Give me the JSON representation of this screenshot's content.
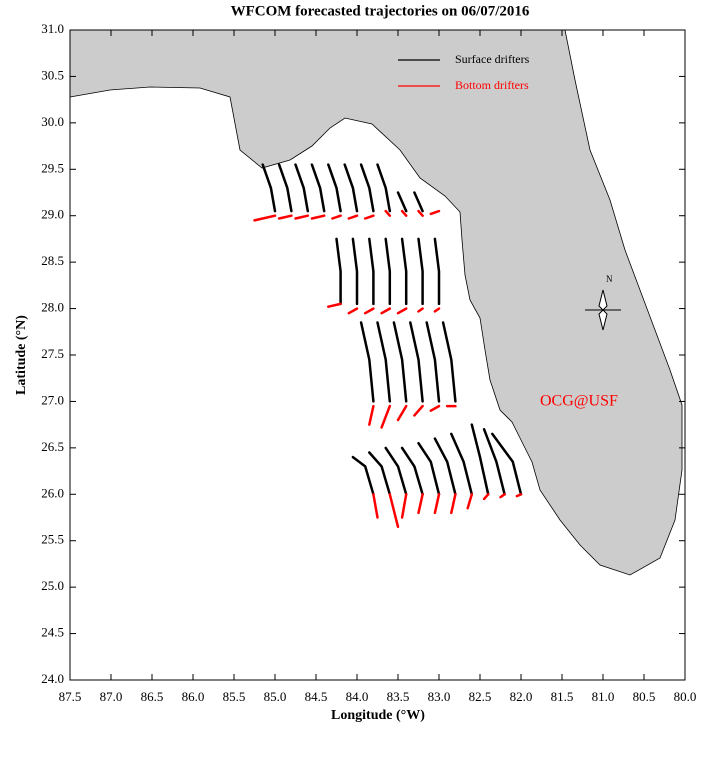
{
  "chart_data": {
    "type": "line",
    "title": "WFCOM forecasted trajectories on 06/07/2016",
    "x_label": "Longitude (°W)",
    "y_label": "Latitude (°N)",
    "annotation": "OCG@USF",
    "xlim": [
      87.5,
      80.0
    ],
    "ylim": [
      24.0,
      31.0
    ],
    "xticks": [
      87.5,
      {
        "value": 87,
        "label": "87.0"
      },
      86.5,
      {
        "value": 86,
        "label": "86.0"
      },
      85.5,
      {
        "value": 85,
        "label": "85.0"
      },
      84.5,
      {
        "value": 84,
        "label": "84.0"
      },
      83.5,
      {
        "value": 83,
        "label": "83.0"
      },
      82.5,
      {
        "value": 82,
        "label": "82.0"
      },
      81.5,
      {
        "value": 81,
        "label": "81.0"
      },
      80.5,
      {
        "value": 80,
        "label": "80.0"
      }
    ],
    "yticks": [
      {
        "value": 24,
        "label": "24.0"
      },
      24.5,
      {
        "value": 25,
        "label": "25.0"
      },
      25.5,
      {
        "value": 26,
        "label": "26.0"
      },
      26.5,
      {
        "value": 27,
        "label": "27.0"
      },
      27.5,
      {
        "value": 28,
        "label": "28.0"
      },
      28.5,
      {
        "value": 29,
        "label": "29.0"
      },
      29.5,
      {
        "value": 30,
        "label": "30.0"
      },
      30.5,
      {
        "value": 31,
        "label": "31.0"
      }
    ],
    "series": [
      {
        "name": "Surface drifters",
        "color": "#000000",
        "x": [
          85.0,
          85.05,
          85.15,
          null,
          84.8,
          84.85,
          84.95,
          null,
          84.6,
          84.65,
          84.75,
          null,
          84.4,
          84.45,
          84.55,
          null,
          84.2,
          84.25,
          84.35,
          null,
          84.0,
          84.05,
          84.15,
          null,
          83.8,
          83.85,
          83.95,
          null,
          83.6,
          83.65,
          83.75,
          null,
          83.4,
          83.45,
          83.5,
          null,
          83.2,
          83.25,
          83.3,
          null,
          84.2,
          84.2,
          84.25,
          null,
          84.0,
          84.0,
          84.05,
          null,
          83.8,
          83.8,
          83.85,
          null,
          83.6,
          83.6,
          83.65,
          null,
          83.4,
          83.4,
          83.45,
          null,
          83.2,
          83.2,
          83.25,
          null,
          83.0,
          83.0,
          83.05,
          null,
          83.8,
          83.85,
          83.95,
          null,
          83.6,
          83.65,
          83.75,
          null,
          83.4,
          83.45,
          83.55,
          null,
          83.2,
          83.25,
          83.35,
          null,
          83.0,
          83.05,
          83.15,
          null,
          82.8,
          82.85,
          82.95,
          null,
          83.8,
          83.9,
          84.05,
          null,
          83.6,
          83.7,
          83.85,
          null,
          83.4,
          83.5,
          83.65,
          null,
          83.2,
          83.3,
          83.45,
          null,
          83.0,
          83.1,
          83.25,
          null,
          82.8,
          82.9,
          83.05,
          null,
          82.6,
          82.7,
          82.85,
          null,
          82.4,
          82.5,
          82.6,
          null,
          82.2,
          82.3,
          82.45,
          null,
          82.0,
          82.1,
          82.35
        ],
        "values": [
          29.05,
          29.3,
          29.55,
          null,
          29.05,
          29.3,
          29.55,
          null,
          29.05,
          29.3,
          29.55,
          null,
          29.05,
          29.3,
          29.55,
          null,
          29.05,
          29.3,
          29.55,
          null,
          29.05,
          29.3,
          29.55,
          null,
          29.05,
          29.3,
          29.55,
          null,
          29.05,
          29.3,
          29.55,
          null,
          29.05,
          29.15,
          29.25,
          null,
          29.05,
          29.15,
          29.25,
          null,
          28.05,
          28.4,
          28.75,
          null,
          28.05,
          28.4,
          28.75,
          null,
          28.05,
          28.4,
          28.75,
          null,
          28.05,
          28.4,
          28.75,
          null,
          28.05,
          28.4,
          28.75,
          null,
          28.05,
          28.4,
          28.75,
          null,
          28.05,
          28.4,
          28.75,
          null,
          27.0,
          27.45,
          27.85,
          null,
          27.0,
          27.45,
          27.85,
          null,
          27.0,
          27.45,
          27.85,
          null,
          27.0,
          27.45,
          27.85,
          null,
          27.0,
          27.45,
          27.85,
          null,
          27.0,
          27.45,
          27.85,
          null,
          26.0,
          26.3,
          26.4,
          null,
          26.0,
          26.3,
          26.45,
          null,
          26.0,
          26.3,
          26.5,
          null,
          26.0,
          26.3,
          26.5,
          null,
          26.0,
          26.35,
          26.55,
          null,
          26.0,
          26.35,
          26.6,
          null,
          26.0,
          26.35,
          26.65,
          null,
          26.0,
          26.4,
          26.75,
          null,
          26.0,
          26.35,
          26.7,
          null,
          26.0,
          26.35,
          26.65
        ]
      },
      {
        "name": "Bottom drifters",
        "color": "#ff0000",
        "x": [
          85.0,
          85.25,
          null,
          84.8,
          84.95,
          null,
          84.6,
          84.75,
          null,
          84.4,
          84.55,
          null,
          84.2,
          84.3,
          null,
          84.0,
          84.1,
          null,
          83.8,
          83.9,
          null,
          83.6,
          83.65,
          null,
          83.4,
          83.45,
          null,
          83.2,
          83.25,
          null,
          83.0,
          83.1,
          null,
          84.2,
          84.35,
          null,
          84.0,
          84.1,
          null,
          83.8,
          83.9,
          null,
          83.6,
          83.7,
          null,
          83.4,
          83.5,
          null,
          83.2,
          83.25,
          null,
          83.0,
          83.05,
          null,
          83.8,
          83.85,
          null,
          83.6,
          83.7,
          null,
          83.4,
          83.5,
          null,
          83.2,
          83.3,
          null,
          83.0,
          83.1,
          null,
          82.8,
          82.9,
          null,
          83.8,
          83.75,
          null,
          83.6,
          83.5,
          null,
          83.4,
          83.45,
          null,
          83.2,
          83.25,
          null,
          83.0,
          83.05,
          null,
          82.8,
          82.85,
          null,
          82.6,
          82.65,
          null,
          82.4,
          82.45,
          null,
          82.2,
          82.25,
          null,
          82.0,
          82.05
        ],
        "values": [
          29.0,
          28.95,
          null,
          29.0,
          28.97,
          null,
          29.0,
          28.97,
          null,
          29.0,
          28.97,
          null,
          29.0,
          28.97,
          null,
          29.0,
          28.97,
          null,
          29.0,
          28.97,
          null,
          29.0,
          29.05,
          null,
          29.0,
          29.05,
          null,
          29.0,
          29.05,
          null,
          29.05,
          29.02,
          null,
          28.05,
          28.02,
          null,
          28.0,
          27.95,
          null,
          28.0,
          27.95,
          null,
          28.0,
          27.95,
          null,
          28.0,
          27.95,
          null,
          28.0,
          27.97,
          null,
          28.0,
          27.97,
          null,
          26.95,
          26.75,
          null,
          26.95,
          26.72,
          null,
          26.95,
          26.8,
          null,
          26.95,
          26.85,
          null,
          26.95,
          26.9,
          null,
          26.95,
          26.95,
          null,
          26.0,
          25.75,
          null,
          26.0,
          25.65,
          null,
          26.0,
          25.75,
          null,
          26.0,
          25.8,
          null,
          26.0,
          25.8,
          null,
          26.0,
          25.8,
          null,
          26.0,
          25.85,
          null,
          26.0,
          25.95,
          null,
          26.0,
          25.97,
          null,
          26.0,
          25.98
        ]
      }
    ]
  }
}
